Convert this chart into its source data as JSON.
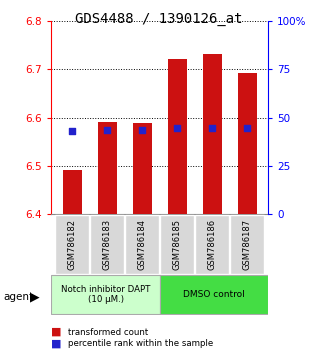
{
  "title": "GDS4488 / 1390126_at",
  "categories": [
    "GSM786182",
    "GSM786183",
    "GSM786184",
    "GSM786185",
    "GSM786186",
    "GSM786187"
  ],
  "bar_bottom": 6.4,
  "bar_tops": [
    6.492,
    6.592,
    6.588,
    6.722,
    6.732,
    6.692
  ],
  "blue_values": [
    6.572,
    6.574,
    6.574,
    6.578,
    6.578,
    6.578
  ],
  "ylim": [
    6.4,
    6.8
  ],
  "ylim_right": [
    0,
    100
  ],
  "yticks_left": [
    6.4,
    6.5,
    6.6,
    6.7,
    6.8
  ],
  "yticks_right": [
    0,
    25,
    50,
    75,
    100
  ],
  "ytick_right_labels": [
    "0",
    "25",
    "50",
    "75",
    "100%"
  ],
  "bar_color": "#cc1111",
  "blue_color": "#2222cc",
  "bar_width": 0.55,
  "group1_label": "Notch inhibitor DAPT\n(10 μM.)",
  "group2_label": "DMSO control",
  "group1_color": "#ccffcc",
  "group2_color": "#44dd44",
  "agent_label": "agent",
  "legend_red": "transformed count",
  "legend_blue": "percentile rank within the sample",
  "title_fontsize": 10,
  "tick_fontsize": 7.5,
  "label_fontsize": 6.5
}
